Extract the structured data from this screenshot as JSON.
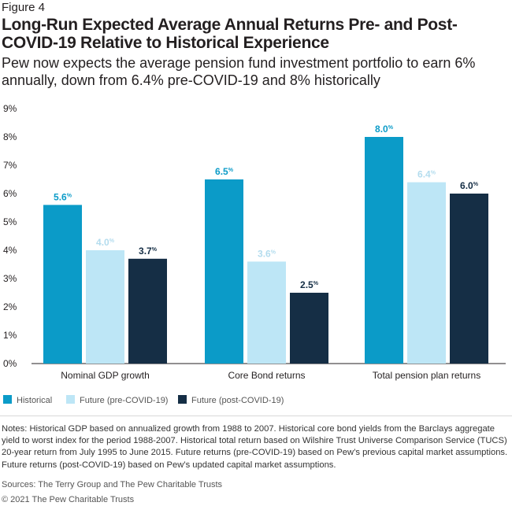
{
  "figure_label": "Figure 4",
  "title": "Long-Run Expected Average Annual Returns Pre- and Post-COVID-19 Relative to Historical Experience",
  "subtitle": "Pew now expects the average pension fund investment portfolio to earn 6% annually, down from 6.4% pre-COVID-19 and 8% historically",
  "chart_data": {
    "type": "bar",
    "categories": [
      "Nominal GDP growth",
      "Core Bond returns",
      "Total pension plan returns"
    ],
    "series": [
      {
        "name": "Historical",
        "values": [
          5.6,
          6.5,
          8.0
        ],
        "labels": [
          "5.6",
          "6.5",
          "8.0"
        ],
        "color": "#0b9bc8",
        "label_color": "#0b9bc8"
      },
      {
        "name": "Future (pre-COVID-19)",
        "values": [
          4.0,
          3.6,
          6.4
        ],
        "labels": [
          "4.0",
          "3.6",
          "6.4"
        ],
        "color": "#bde6f6",
        "label_color": "#b3dcee"
      },
      {
        "name": "Future (post-COVID-19)",
        "values": [
          3.7,
          2.5,
          6.0
        ],
        "labels": [
          "3.7",
          "2.5",
          "6.0"
        ],
        "color": "#152e45",
        "label_color": "#152e45"
      }
    ],
    "y_ticks": [
      "0%",
      "1%",
      "2%",
      "3%",
      "4%",
      "5%",
      "6%",
      "7%",
      "8%",
      "9%"
    ],
    "ylim": [
      0,
      9
    ],
    "value_suffix": "%",
    "grid": false,
    "legend_position": "bottom-left"
  },
  "notes": "Notes: Historical GDP based on annualized growth from 1988 to 2007. Historical core bond yields from the Barclays aggregate yield to worst index for the period 1988-2007. Historical total return based on Wilshire Trust Universe Comparison Service (TUCS) 20-year return from July 1995 to June 2015. Future returns (pre-COVID-19) based on Pew’s previous capital market assumptions. Future returns (post-COVID-19) based on Pew’s updated capital market assumptions.",
  "sources": "Sources: The Terry Group and The Pew Charitable Trusts",
  "copyright": "© 2021 The Pew Charitable Trusts"
}
